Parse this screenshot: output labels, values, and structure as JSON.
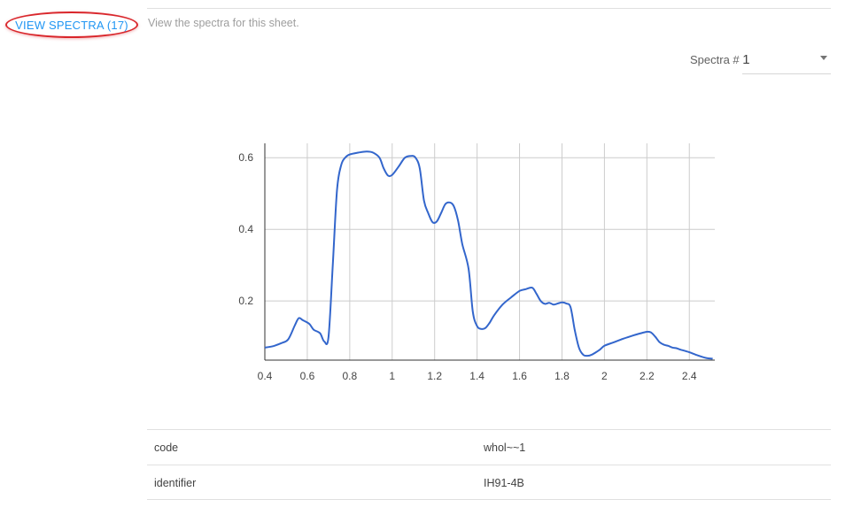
{
  "view_button": {
    "label": "VIEW SPECTRA (17)",
    "description": "View the spectra for this sheet."
  },
  "spectra_selector": {
    "label": "Spectra #",
    "value": "1"
  },
  "colors": {
    "line": "#3366cc",
    "button_text": "#2196f3",
    "highlight_ring": "#d9262b"
  },
  "chart_data": {
    "type": "line",
    "title": "",
    "xlabel": "",
    "ylabel": "",
    "xlim": [
      0.4,
      2.52
    ],
    "ylim": [
      0.035,
      0.64
    ],
    "x_ticks": [
      "0.4",
      "0.6",
      "0.8",
      "1",
      "1.2",
      "1.4",
      "1.6",
      "1.8",
      "2",
      "2.2",
      "2.4"
    ],
    "x_tick_values": [
      0.4,
      0.6,
      0.8,
      1.0,
      1.2,
      1.4,
      1.6,
      1.8,
      2.0,
      2.2,
      2.4
    ],
    "y_ticks": [
      "0.2",
      "0.4",
      "0.6"
    ],
    "y_tick_values": [
      0.2,
      0.4,
      0.6
    ],
    "grid": true,
    "series": [
      {
        "x": [
          0.4,
          0.44,
          0.48,
          0.51,
          0.54,
          0.56,
          0.58,
          0.61,
          0.63,
          0.66,
          0.68,
          0.7,
          0.72,
          0.74,
          0.76,
          0.78,
          0.8,
          0.84,
          0.88,
          0.91,
          0.94,
          0.96,
          0.98,
          1.0,
          1.03,
          1.06,
          1.09,
          1.11,
          1.13,
          1.15,
          1.17,
          1.19,
          1.21,
          1.23,
          1.25,
          1.27,
          1.29,
          1.31,
          1.33,
          1.36,
          1.38,
          1.4,
          1.42,
          1.44,
          1.46,
          1.48,
          1.52,
          1.56,
          1.6,
          1.63,
          1.66,
          1.68,
          1.7,
          1.72,
          1.74,
          1.76,
          1.78,
          1.8,
          1.82,
          1.84,
          1.86,
          1.88,
          1.9,
          1.92,
          1.94,
          1.96,
          1.98,
          2.0,
          2.04,
          2.08,
          2.12,
          2.16,
          2.2,
          2.22,
          2.24,
          2.26,
          2.28,
          2.3,
          2.32,
          2.34,
          2.36,
          2.4,
          2.44,
          2.48,
          2.51
        ],
        "y": [
          0.07,
          0.074,
          0.083,
          0.093,
          0.13,
          0.152,
          0.146,
          0.136,
          0.12,
          0.11,
          0.087,
          0.1,
          0.3,
          0.51,
          0.58,
          0.601,
          0.609,
          0.614,
          0.617,
          0.614,
          0.6,
          0.57,
          0.55,
          0.552,
          0.575,
          0.6,
          0.605,
          0.6,
          0.57,
          0.48,
          0.445,
          0.42,
          0.422,
          0.445,
          0.47,
          0.475,
          0.465,
          0.425,
          0.36,
          0.29,
          0.17,
          0.13,
          0.122,
          0.125,
          0.14,
          0.16,
          0.19,
          0.21,
          0.228,
          0.233,
          0.237,
          0.22,
          0.2,
          0.192,
          0.195,
          0.19,
          0.193,
          0.196,
          0.193,
          0.183,
          0.12,
          0.07,
          0.05,
          0.047,
          0.05,
          0.057,
          0.065,
          0.075,
          0.084,
          0.093,
          0.101,
          0.108,
          0.114,
          0.112,
          0.1,
          0.085,
          0.078,
          0.075,
          0.07,
          0.068,
          0.064,
          0.057,
          0.048,
          0.041,
          0.039
        ]
      }
    ]
  },
  "info_table": {
    "rows": [
      {
        "key": "code",
        "value": "whol~~1"
      },
      {
        "key": "identifier",
        "value": "IH91-4B"
      }
    ]
  }
}
